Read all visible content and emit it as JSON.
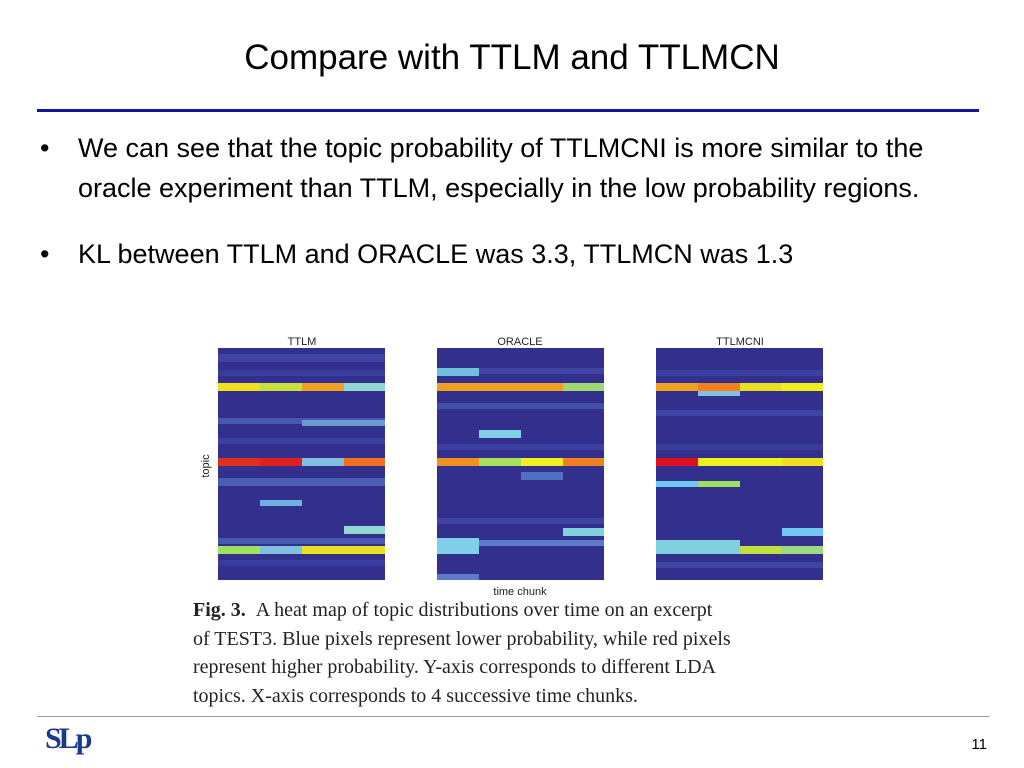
{
  "header": {
    "title": "Compare with TTLM and TTLMCN"
  },
  "bullets": [
    "We can see that the topic probability of TTLMCNI is more similar to the oracle experiment than TTLM, especially in the low probability regions.",
    "KL between TTLM and ORACLE was 3.3, TTLMCN was 1.3"
  ],
  "figure": {
    "panels": [
      "TTLM",
      "ORACLE",
      "TTLMCNI"
    ],
    "y_label": "topic",
    "x_label": "time chunk",
    "caption": {
      "label": "Fig. 3.",
      "lines": [
        "A heat map of topic distributions over time on an excerpt",
        "of TEST3.  Blue pixels represent lower probability, while red pixels",
        "represent higher probability.  Y-axis corresponds to different LDA",
        "topics. X-axis corresponds to 4 successive time chunks."
      ]
    }
  },
  "footer": {
    "logo": "SLp",
    "page": "11"
  }
}
